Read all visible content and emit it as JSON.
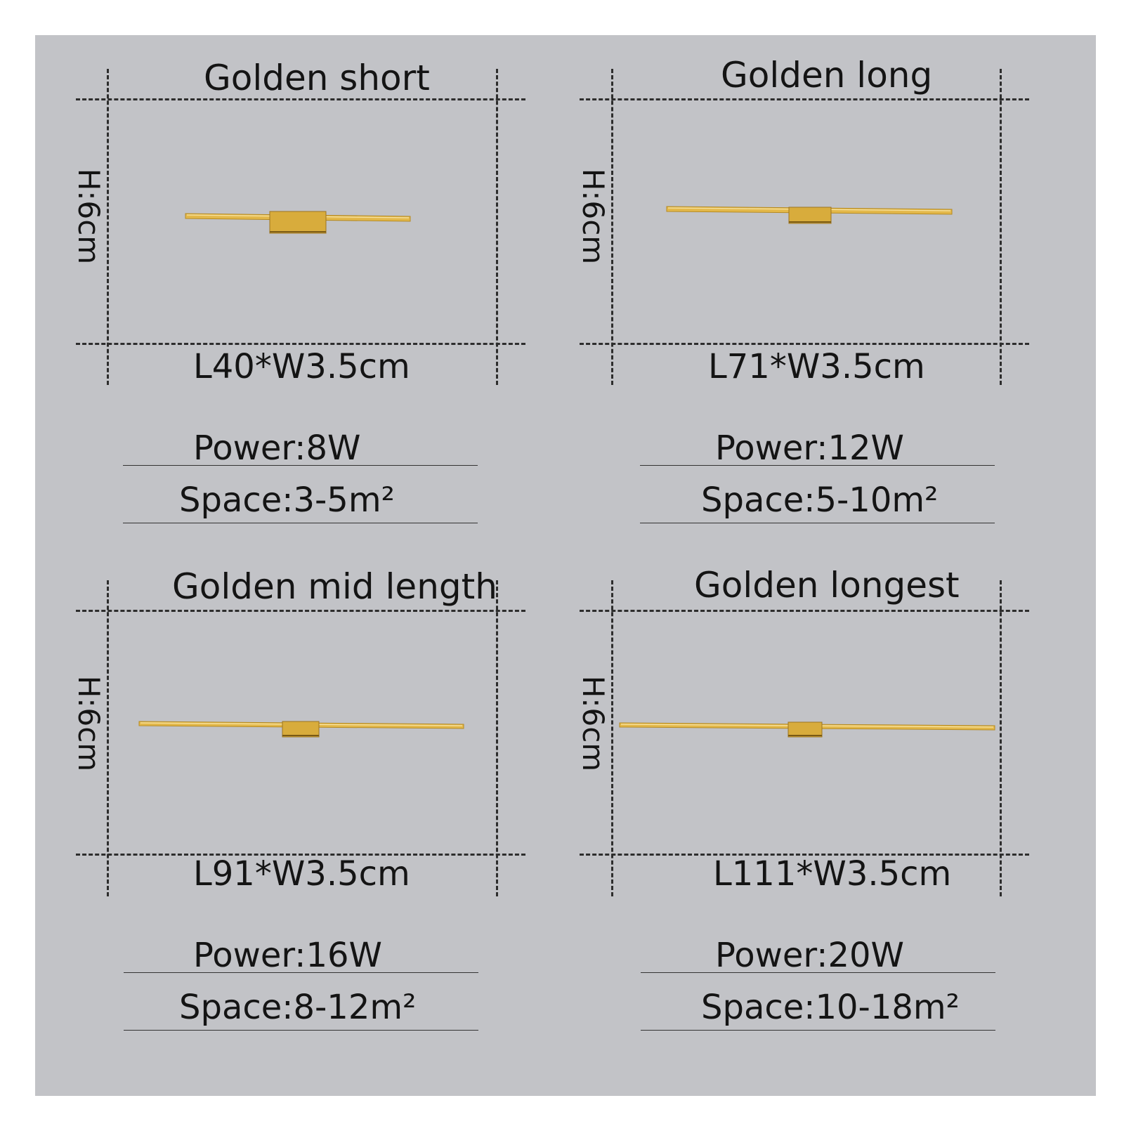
{
  "background_color": "#c2c3c7",
  "gold_color": "#e0b53e",
  "products": [
    {
      "title": "Golden short",
      "height_label": "H:6cm",
      "dimensions": "L40*W3.5cm",
      "power": "Power:8W",
      "space": "Space:3-5m²",
      "icon": "golden-wall-lamp-icon"
    },
    {
      "title": "Golden long",
      "height_label": "H:6cm",
      "dimensions": "L71*W3.5cm",
      "power": "Power:12W",
      "space": "Space:5-10m²",
      "icon": "golden-wall-lamp-icon"
    },
    {
      "title": "Golden mid length",
      "height_label": "H:6cm",
      "dimensions": "L91*W3.5cm",
      "power": "Power:16W",
      "space": "Space:8-12m²",
      "icon": "golden-wall-lamp-icon"
    },
    {
      "title": "Golden longest",
      "height_label": "H:6cm",
      "dimensions": "L111*W3.5cm",
      "power": "Power:20W",
      "space": "Space:10-18m²",
      "icon": "golden-wall-lamp-icon"
    }
  ]
}
